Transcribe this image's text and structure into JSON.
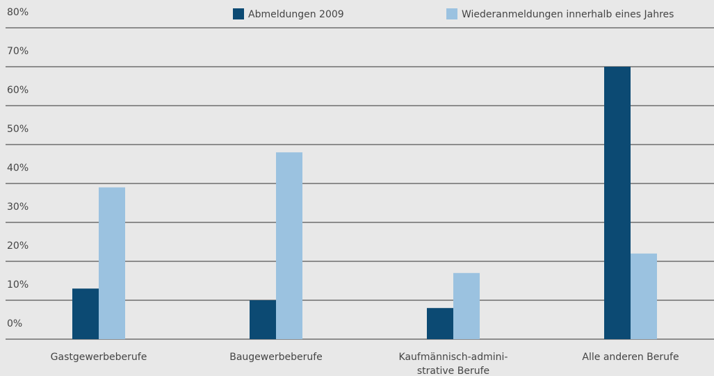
{
  "chart_data": {
    "type": "bar",
    "categories": [
      "Gastgewerbeberufe",
      "Baugewerbeberufe",
      "Kaufmännisch-admini-\nstrative Berufe",
      "Alle anderen Berufe"
    ],
    "series": [
      {
        "name": "Abmeldungen 2009",
        "color": "#0c4a73",
        "values": [
          13,
          10,
          8,
          70
        ]
      },
      {
        "name": "Wiederanmeldungen innerhalb eines Jahres",
        "color": "#9bc2e0",
        "values": [
          39,
          48,
          17,
          22
        ]
      }
    ],
    "ylim": [
      0,
      80
    ],
    "yticks": [
      {
        "value": 0,
        "label": "0%"
      },
      {
        "value": 10,
        "label": "10%"
      },
      {
        "value": 20,
        "label": "20%"
      },
      {
        "value": 30,
        "label": "30%"
      },
      {
        "value": 40,
        "label": "40%"
      },
      {
        "value": 50,
        "label": "50%"
      },
      {
        "value": 60,
        "label": "60%"
      },
      {
        "value": 70,
        "label": "70%"
      },
      {
        "value": 80,
        "label": "80%"
      }
    ],
    "grid": true,
    "legend": "top"
  }
}
